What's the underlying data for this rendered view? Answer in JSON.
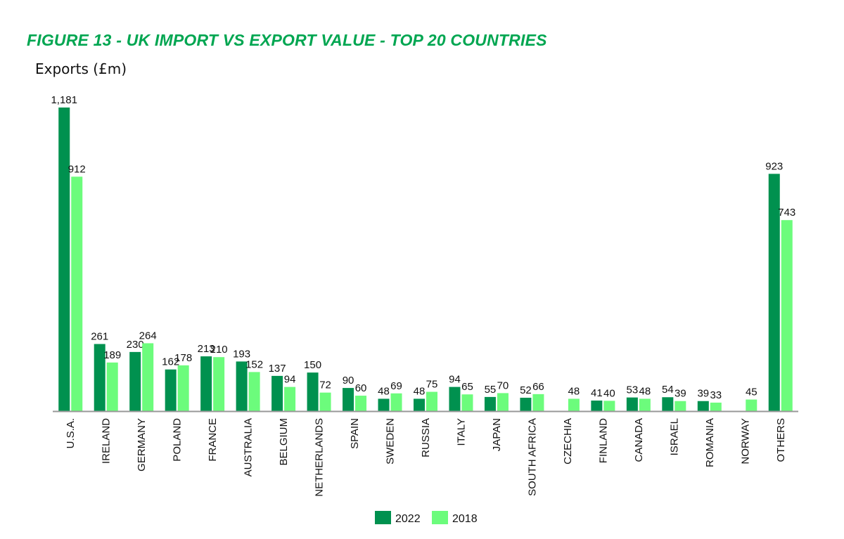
{
  "chart_data": {
    "type": "bar",
    "title": "FIGURE 13 - UK IMPORT VS EXPORT VALUE - TOP 20 COUNTRIES",
    "ylabel": "Exports (£m)",
    "xlabel": "",
    "ylim": [
      0,
      1181
    ],
    "grid": false,
    "legend_position": "bottom-center",
    "categories": [
      "U.S.A.",
      "IRELAND",
      "GERMANY",
      "POLAND",
      "FRANCE",
      "AUSTRALIA",
      "BELGIUM",
      "NETHERLANDS",
      "SPAIN",
      "SWEDEN",
      "RUSSIA",
      "ITALY",
      "JAPAN",
      "SOUTH AFRICA",
      "CZECHIA",
      "FINLAND",
      "CANADA",
      "ISRAEL",
      "ROMANIA",
      "NORWAY",
      "OTHERS"
    ],
    "series": [
      {
        "name": "2022",
        "color": "#00914f",
        "values": [
          1181,
          261,
          230,
          162,
          213,
          193,
          137,
          150,
          90,
          48,
          48,
          94,
          55,
          52,
          null,
          41,
          53,
          54,
          39,
          null,
          923
        ],
        "labels": [
          "1,181",
          "261",
          "230",
          "162",
          "213",
          "193",
          "137",
          "150",
          "90",
          "48",
          "48",
          "94",
          "55",
          "52",
          "",
          "41",
          "53",
          "54",
          "39",
          "",
          "923"
        ]
      },
      {
        "name": "2018",
        "color": "#6cfc7c",
        "values": [
          912,
          189,
          264,
          178,
          210,
          152,
          94,
          72,
          60,
          69,
          75,
          65,
          70,
          66,
          48,
          40,
          48,
          39,
          33,
          45,
          743
        ],
        "labels": [
          "912",
          "189",
          "264",
          "178",
          "210",
          "152",
          "94",
          "72",
          "60",
          "69",
          "75",
          "65",
          "70",
          "66",
          "48",
          "40",
          "48",
          "39",
          "33",
          "45",
          "743"
        ]
      }
    ]
  }
}
